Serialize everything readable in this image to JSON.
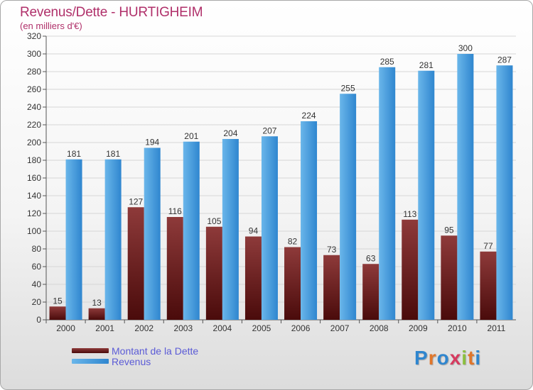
{
  "title": "Revenus/Dette - HURTIGHEIM",
  "subtitle": "(en milliers d'€)",
  "logo_text": "Proxiti",
  "colors": {
    "title": "#b0306a",
    "legend_text": "#5b5bd6",
    "dette_top": "#8e3a3a",
    "dette_bottom": "#4a0b0b",
    "revenus_light": "#6ab6ea",
    "revenus_dark": "#2f86cf",
    "grid": "#d6d6d6"
  },
  "chart_data": {
    "type": "bar",
    "categories": [
      "2000",
      "2001",
      "2002",
      "2003",
      "2004",
      "2005",
      "2006",
      "2007",
      "2008",
      "2009",
      "2010",
      "2011"
    ],
    "series": [
      {
        "name": "Montant de la Dette",
        "values": [
          15,
          13,
          127,
          116,
          105,
          94,
          82,
          73,
          63,
          113,
          95,
          77
        ]
      },
      {
        "name": "Revenus",
        "values": [
          181,
          181,
          194,
          201,
          204,
          207,
          224,
          255,
          285,
          281,
          300,
          287
        ]
      }
    ],
    "ylim": [
      0,
      320
    ],
    "yticks": [
      0,
      20,
      40,
      60,
      80,
      100,
      120,
      140,
      160,
      180,
      200,
      220,
      240,
      260,
      280,
      300,
      320
    ],
    "grid": true,
    "legend_position": "bottom-left"
  }
}
